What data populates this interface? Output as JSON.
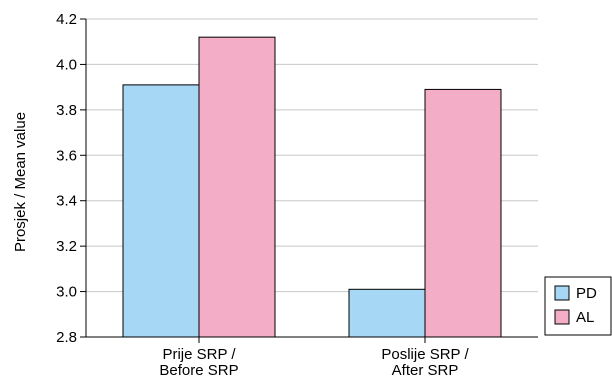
{
  "chart_data": {
    "type": "bar",
    "categories": [
      [
        "Prije SRP /",
        "Before SRP"
      ],
      [
        "Poslije SRP /",
        "After SRP"
      ]
    ],
    "series": [
      {
        "name": "PD",
        "values": [
          3.91,
          3.01
        ],
        "color": "#a6d8f6"
      },
      {
        "name": "AL",
        "values": [
          4.12,
          3.89
        ],
        "color": "#f4adc7"
      }
    ],
    "ylabel": "Prosjek / Mean value",
    "ylim": [
      2.8,
      4.2
    ],
    "yticks": [
      "2.8",
      "3.0",
      "3.2",
      "3.4",
      "3.6",
      "3.8",
      "4.0",
      "4.2"
    ],
    "grid": true,
    "legend_position": "bottom-right"
  }
}
